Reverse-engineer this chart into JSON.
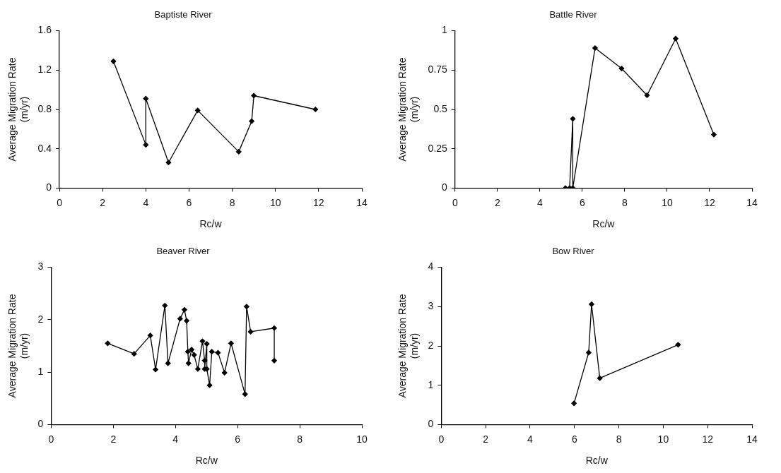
{
  "chart_data": [
    {
      "type": "line",
      "title": "Baptiste River",
      "xlabel": "Rc/w",
      "ylabel": "Average Migration Rate (m/yr)",
      "marker": "diamond",
      "grid": false,
      "xlim": [
        0,
        14
      ],
      "xticks": [
        0,
        2,
        4,
        6,
        8,
        10,
        12,
        14
      ],
      "ylim": [
        0,
        1.6
      ],
      "yticks": [
        0,
        0.4,
        0.8,
        1.2,
        1.6
      ],
      "x": [
        2.5,
        4.0,
        4.0,
        5.05,
        6.4,
        8.3,
        8.9,
        9.0,
        11.85
      ],
      "series": [
        {
          "color": "#000000",
          "values": [
            1.29,
            0.44,
            0.91,
            0.26,
            0.79,
            0.37,
            0.68,
            0.94,
            0.8
          ]
        }
      ]
    },
    {
      "type": "line",
      "title": "Battle River",
      "xlabel": "Rc/w",
      "ylabel": "Average Migration Rate (m/yr)",
      "marker": "diamond",
      "grid": false,
      "xlim": [
        0,
        14
      ],
      "xticks": [
        0,
        2,
        4,
        6,
        8,
        10,
        12,
        14
      ],
      "ylim": [
        0,
        1
      ],
      "yticks": [
        0,
        0.25,
        0.5,
        0.75,
        1
      ],
      "x": [
        5.2,
        5.4,
        5.55,
        5.55,
        6.6,
        7.85,
        9.05,
        10.4,
        12.2
      ],
      "series": [
        {
          "color": "#000000",
          "values": [
            0,
            0,
            0.44,
            0,
            0.89,
            0.76,
            0.59,
            0.95,
            0.34
          ]
        }
      ]
    },
    {
      "type": "line",
      "title": "Beaver River",
      "xlabel": "Rc/w",
      "ylabel": "Average Migration Rate (m/yr)",
      "marker": "diamond",
      "grid": false,
      "xlim": [
        0,
        10
      ],
      "xticks": [
        0,
        2,
        4,
        6,
        8,
        10
      ],
      "ylim": [
        0,
        3
      ],
      "yticks": [
        0,
        1,
        2,
        3
      ],
      "x": [
        1.82,
        2.67,
        3.19,
        3.36,
        3.66,
        3.76,
        4.15,
        4.29,
        4.36,
        4.4,
        4.42,
        4.52,
        4.6,
        4.72,
        4.87,
        4.94,
        4.94,
        5.01,
        5.01,
        5.1,
        5.17,
        5.37,
        5.58,
        5.79,
        6.24,
        6.29,
        6.42,
        7.18,
        7.18
      ],
      "series": [
        {
          "color": "#000000",
          "values": [
            1.55,
            1.35,
            1.7,
            1.05,
            2.27,
            1.17,
            2.02,
            2.19,
            1.98,
            1.39,
            1.17,
            1.43,
            1.33,
            1.06,
            1.59,
            1.22,
            1.06,
            1.54,
            1.06,
            0.75,
            1.39,
            1.37,
            0.99,
            1.55,
            0.58,
            2.25,
            1.77,
            1.84,
            1.22
          ]
        }
      ]
    },
    {
      "type": "line",
      "title": "Bow River",
      "xlabel": "Rc/w",
      "ylabel": "Average Migration Rate (m/yr)",
      "marker": "diamond",
      "grid": false,
      "xlim": [
        0,
        14
      ],
      "xticks": [
        0,
        2,
        4,
        6,
        8,
        10,
        12,
        14
      ],
      "ylim": [
        0,
        4
      ],
      "yticks": [
        0,
        1,
        2,
        3,
        4
      ],
      "x": [
        5.98,
        6.64,
        6.77,
        7.14,
        10.67
      ],
      "series": [
        {
          "color": "#000000",
          "values": [
            0.54,
            1.83,
            3.06,
            1.18,
            2.03
          ]
        }
      ]
    }
  ]
}
